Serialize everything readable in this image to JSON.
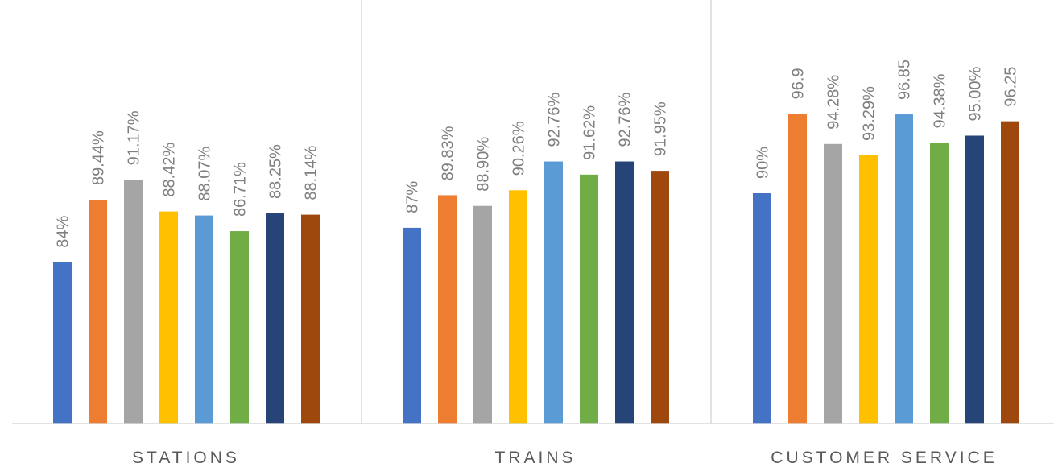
{
  "chart_data": {
    "type": "bar",
    "categories": [
      "STATIONS",
      "TRAINS",
      "CUSTOMER SERVICE"
    ],
    "ylim": [
      0,
      100
    ],
    "grid": false,
    "legend": "none",
    "colors": [
      "#4472c4",
      "#ed7d31",
      "#a5a5a5",
      "#ffc000",
      "#5b9bd5",
      "#70ad47",
      "#264478",
      "#9e480e"
    ],
    "series": [
      {
        "values": [
          84,
          87,
          90
        ]
      },
      {
        "values": [
          89.44,
          89.83,
          96.9
        ]
      },
      {
        "values": [
          91.17,
          88.9,
          94.28
        ]
      },
      {
        "values": [
          88.42,
          90.26,
          93.29
        ]
      },
      {
        "values": [
          88.07,
          92.76,
          96.85
        ]
      },
      {
        "values": [
          86.71,
          91.62,
          94.38
        ]
      },
      {
        "values": [
          88.25,
          92.76,
          95.0
        ]
      },
      {
        "values": [
          88.14,
          91.95,
          96.25
        ]
      }
    ],
    "labels": [
      [
        "84%",
        "87%",
        "90%"
      ],
      [
        "89.44%",
        "89.83%",
        "96.9"
      ],
      [
        "91.17%",
        "88.90%",
        "94.28%"
      ],
      [
        "88.42%",
        "90.26%",
        "93.29%"
      ],
      [
        "88.07%",
        "92.76%",
        "96.85"
      ],
      [
        "86.71%",
        "91.62%",
        "94.38%"
      ],
      [
        "88.25%",
        "92.76%",
        "95.00%"
      ],
      [
        "88.14%",
        "91.95%",
        "96.25"
      ]
    ]
  }
}
